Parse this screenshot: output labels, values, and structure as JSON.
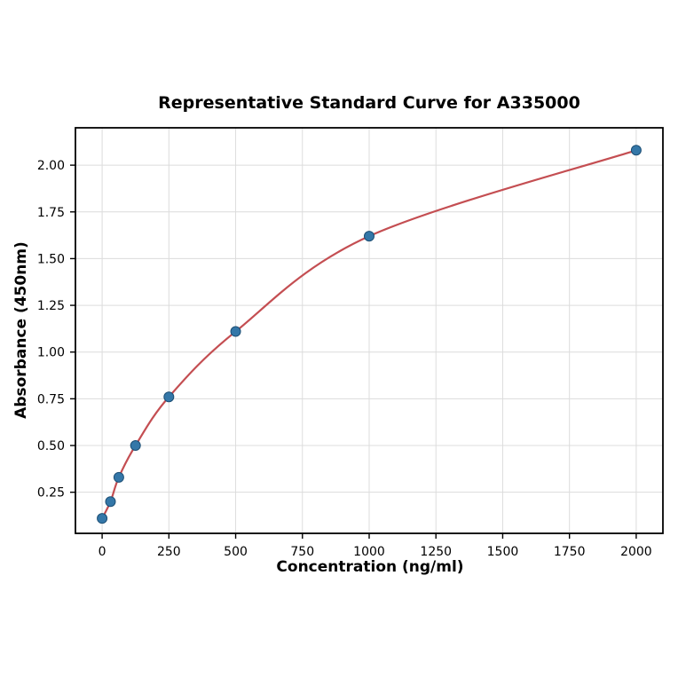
{
  "page": {
    "background": "#ffffff"
  },
  "chart_data": {
    "type": "scatter",
    "title": "Representative Standard Curve for A335000",
    "xlabel": "Concentration (ng/ml)",
    "ylabel": "Absorbance (450nm)",
    "x": [
      0,
      31.25,
      62.5,
      125,
      250,
      500,
      1000,
      2000
    ],
    "y": [
      0.11,
      0.2,
      0.33,
      0.5,
      0.76,
      1.11,
      1.62,
      2.08
    ],
    "xlim": [
      -100,
      2100
    ],
    "ylim": [
      0.03,
      2.2
    ],
    "xticks": [
      0,
      250,
      500,
      750,
      1000,
      1250,
      1500,
      1750,
      2000
    ],
    "yticks": [
      0.25,
      0.5,
      0.75,
      1.0,
      1.25,
      1.5,
      1.75,
      2.0
    ],
    "grid": true,
    "legend_position": "none",
    "curve_color": "#c44e52",
    "point_fill_color": "#3477a8",
    "point_edge_color": "#1d4f75",
    "grid_color": "#dcdcdc",
    "axis_color": "#000000"
  }
}
